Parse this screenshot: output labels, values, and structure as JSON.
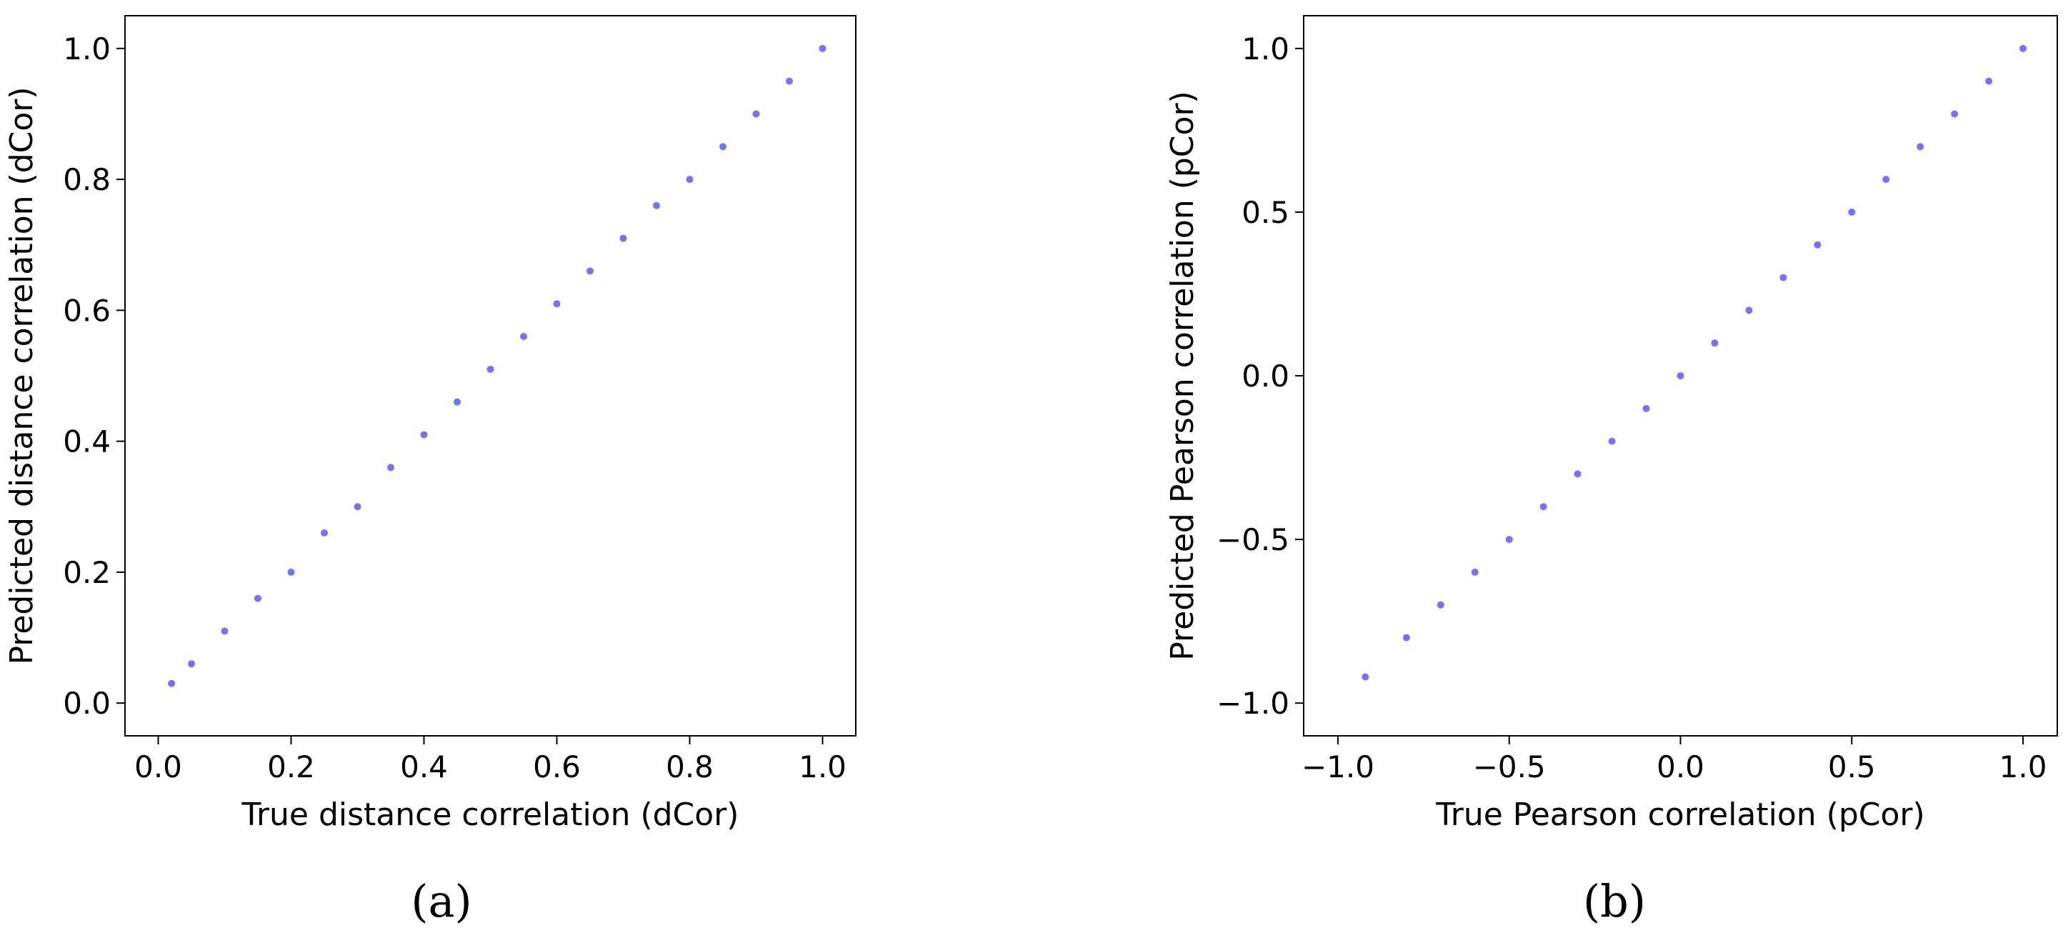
{
  "chart_data": [
    {
      "type": "scatter",
      "panel_label": "(a)",
      "xlabel": "True distance correlation (dCor)",
      "ylabel": "Predicted distance correlation (dCor)",
      "xlim": [
        -0.05,
        1.05
      ],
      "ylim": [
        -0.05,
        1.05
      ],
      "xticks": [
        0.0,
        0.2,
        0.4,
        0.6,
        0.8,
        1.0
      ],
      "yticks": [
        0.0,
        0.2,
        0.4,
        0.6,
        0.8,
        1.0
      ],
      "tick_labels": [
        "0.0",
        "0.2",
        "0.4",
        "0.6",
        "0.8",
        "1.0"
      ],
      "color": "#0000ff",
      "grid": false,
      "points": [
        [
          0.02,
          0.03
        ],
        [
          0.05,
          0.06
        ],
        [
          0.1,
          0.11
        ],
        [
          0.15,
          0.16
        ],
        [
          0.2,
          0.2
        ],
        [
          0.25,
          0.26
        ],
        [
          0.3,
          0.3
        ],
        [
          0.35,
          0.36
        ],
        [
          0.4,
          0.41
        ],
        [
          0.45,
          0.46
        ],
        [
          0.5,
          0.51
        ],
        [
          0.55,
          0.56
        ],
        [
          0.6,
          0.61
        ],
        [
          0.65,
          0.66
        ],
        [
          0.7,
          0.71
        ],
        [
          0.75,
          0.76
        ],
        [
          0.8,
          0.8
        ],
        [
          0.85,
          0.85
        ],
        [
          0.9,
          0.9
        ],
        [
          0.95,
          0.95
        ],
        [
          1.0,
          1.0
        ]
      ]
    },
    {
      "type": "scatter",
      "panel_label": "(b)",
      "xlabel": "True Pearson correlation (pCor)",
      "ylabel": "Predicted Pearson correlation (pCor)",
      "xlim": [
        -1.1,
        1.1
      ],
      "ylim": [
        -1.1,
        1.1
      ],
      "xticks": [
        -1.0,
        -0.5,
        0.0,
        0.5,
        1.0
      ],
      "yticks": [
        -1.0,
        -0.5,
        0.0,
        0.5,
        1.0
      ],
      "tick_labels": [
        "−1.0",
        "−0.5",
        "0.0",
        "0.5",
        "1.0"
      ],
      "color": "#0000ff",
      "grid": false,
      "points": [
        [
          -0.92,
          -0.92
        ],
        [
          -0.8,
          -0.8
        ],
        [
          -0.7,
          -0.7
        ],
        [
          -0.6,
          -0.6
        ],
        [
          -0.5,
          -0.5
        ],
        [
          -0.4,
          -0.4
        ],
        [
          -0.3,
          -0.3
        ],
        [
          -0.2,
          -0.2
        ],
        [
          -0.1,
          -0.1
        ],
        [
          0.0,
          0.0
        ],
        [
          0.1,
          0.1
        ],
        [
          0.2,
          0.2
        ],
        [
          0.3,
          0.3
        ],
        [
          0.4,
          0.4
        ],
        [
          0.5,
          0.5
        ],
        [
          0.6,
          0.6
        ],
        [
          0.7,
          0.7
        ],
        [
          0.8,
          0.8
        ],
        [
          0.9,
          0.9
        ],
        [
          1.0,
          1.0
        ]
      ]
    }
  ]
}
